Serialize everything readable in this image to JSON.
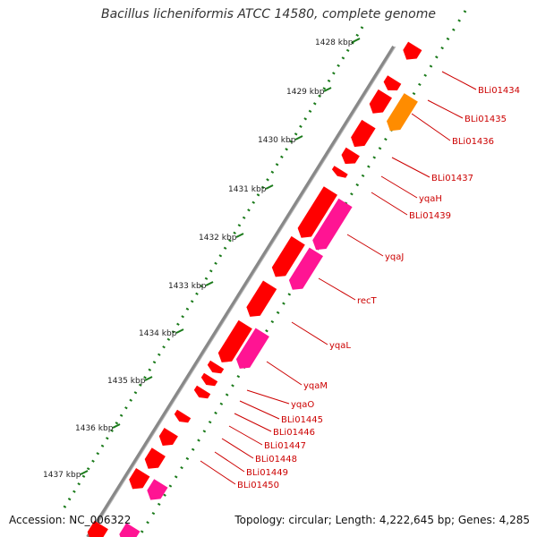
{
  "title": "Bacillus licheniformis ATCC 14580, complete genome",
  "footer": {
    "accession": "Accession: NC_006322",
    "topology": "Topology: circular; Length: 4,222,645 bp; Genes: 4,285"
  },
  "kbp_labels": [
    "1428 kbp",
    "1429 kbp",
    "1430 kbp",
    "1431 kbp",
    "1432 kbp",
    "1433 kbp",
    "1434 kbp",
    "1435 kbp",
    "1436 kbp",
    "1437 kbp"
  ],
  "gene_labels": [
    "BLi01434",
    "BLi01435",
    "BLi01436",
    "BLi01437",
    "yqaH",
    "BLi01439",
    "yqaJ",
    "recT",
    "yqaL",
    "yqaM",
    "yqaO",
    "BLi01445",
    "BLi01446",
    "BLi01447",
    "BLi01448",
    "BLi01449",
    "BLi01450"
  ],
  "colors": {
    "cds": "#ff0000",
    "rna": "#ff1493",
    "highlight": "#ff8c00",
    "label": "#cc0000",
    "dots": "#1a7a1a",
    "backbone": "#808080"
  }
}
